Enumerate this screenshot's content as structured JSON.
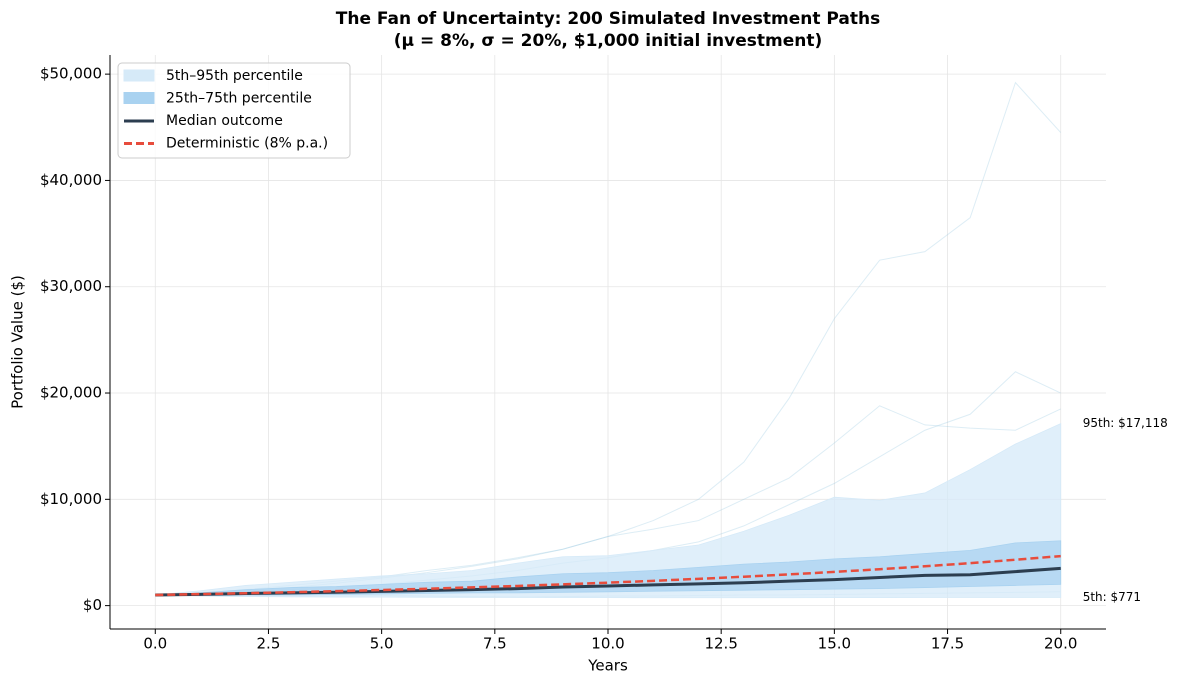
{
  "chart_data": {
    "type": "fan",
    "title": "The Fan of Uncertainty: 200 Simulated Investment Paths",
    "subtitle": "(μ = 8%, σ = 20%, $1,000 initial investment)",
    "x_label": "Years",
    "y_label": "Portfolio Value ($)",
    "x": [
      0,
      1,
      2,
      3,
      4,
      5,
      6,
      7,
      8,
      9,
      10,
      11,
      12,
      13,
      14,
      15,
      16,
      17,
      18,
      19,
      20
    ],
    "xlim": [
      -1,
      21
    ],
    "xticks": [
      {
        "value": 0,
        "label": "0.0"
      },
      {
        "value": 2.5,
        "label": "2.5"
      },
      {
        "value": 5,
        "label": "5.0"
      },
      {
        "value": 7.5,
        "label": "7.5"
      },
      {
        "value": 10,
        "label": "10.0"
      },
      {
        "value": 12.5,
        "label": "12.5"
      },
      {
        "value": 15,
        "label": "15.0"
      },
      {
        "value": 17.5,
        "label": "17.5"
      },
      {
        "value": 20,
        "label": "20.0"
      }
    ],
    "ylim": [
      -2200,
      51800
    ],
    "yticks": [
      {
        "value": 0,
        "label": "$0"
      },
      {
        "value": 10000,
        "label": "$10,000"
      },
      {
        "value": 20000,
        "label": "$20,000"
      },
      {
        "value": 30000,
        "label": "$30,000"
      },
      {
        "value": 40000,
        "label": "$40,000"
      },
      {
        "value": 50000,
        "label": "$50,000"
      }
    ],
    "grid": true,
    "legend": "upper left",
    "path_color": "#9ecae1",
    "paths": [
      [
        1000,
        1150,
        1400,
        1700,
        2100,
        2600,
        3100,
        3700,
        4400,
        5300,
        6500,
        8000,
        10000,
        13500,
        19500,
        27000,
        32500,
        33300,
        36500,
        49200,
        44500
      ],
      [
        1000,
        1200,
        1500,
        1900,
        2300,
        2700,
        3300,
        3800,
        4500,
        5300,
        6500,
        7200,
        8000,
        10000,
        12000,
        15300,
        18800,
        17000,
        16700,
        16500,
        18500
      ],
      [
        1000,
        1100,
        1300,
        1500,
        1700,
        2000,
        2400,
        2800,
        3300,
        4000,
        4500,
        5200,
        6000,
        7500,
        9500,
        11500,
        14000,
        16500,
        18000,
        22000,
        20000
      ],
      [
        1000,
        950,
        900,
        850,
        900,
        950,
        900,
        850,
        800,
        850,
        900,
        900,
        950,
        1000,
        1000,
        1050,
        1100,
        1150,
        1200,
        1250,
        1300
      ]
    ],
    "bands": [
      {
        "name": "5th–95th percentile",
        "color": "#d6eaf8",
        "lower": [
          1000,
          900,
          850,
          820,
          800,
          800,
          780,
          760,
          760,
          750,
          750,
          740,
          740,
          740,
          740,
          750,
          750,
          760,
          760,
          765,
          771
        ],
        "upper": [
          1000,
          1400,
          1900,
          2200,
          2500,
          2800,
          3000,
          3300,
          4000,
          4600,
          4700,
          5200,
          5700,
          7000,
          8500,
          10200,
          9900,
          10600,
          12800,
          15200,
          17118
        ]
      },
      {
        "name": "25th–75th percentile",
        "color": "#a9d2f0",
        "lower": [
          1000,
          950,
          1000,
          1000,
          1050,
          1100,
          1150,
          1200,
          1200,
          1250,
          1300,
          1350,
          1400,
          1450,
          1500,
          1550,
          1600,
          1700,
          1800,
          1900,
          2000
        ],
        "upper": [
          1000,
          1200,
          1500,
          1700,
          1800,
          2000,
          2200,
          2300,
          2700,
          3000,
          3100,
          3300,
          3600,
          3900,
          4100,
          4400,
          4600,
          4900,
          5200,
          5900,
          6100
        ]
      }
    ],
    "series": [
      {
        "name": "Median outcome",
        "color": "#2c3e50",
        "linestyle": "solid",
        "values": [
          1000,
          1060,
          1140,
          1200,
          1260,
          1340,
          1420,
          1500,
          1600,
          1750,
          1850,
          1950,
          2050,
          2150,
          2300,
          2450,
          2650,
          2850,
          2900,
          3200,
          3500
        ]
      },
      {
        "name": "Deterministic (8% p.a.)",
        "color": "#e74c3c",
        "linestyle": "dashed",
        "values": [
          1000,
          1080,
          1166,
          1260,
          1360,
          1469,
          1587,
          1714,
          1851,
          1999,
          2159,
          2332,
          2518,
          2720,
          2937,
          3172,
          3426,
          3700,
          3996,
          4316,
          4661
        ]
      }
    ],
    "annotations": [
      {
        "x": 20,
        "value": 17118,
        "label": "95th: $17,118",
        "color": "#2e86c1"
      },
      {
        "x": 20,
        "value": 771,
        "label": "5th: $771",
        "color": "#2e86c1"
      }
    ]
  }
}
